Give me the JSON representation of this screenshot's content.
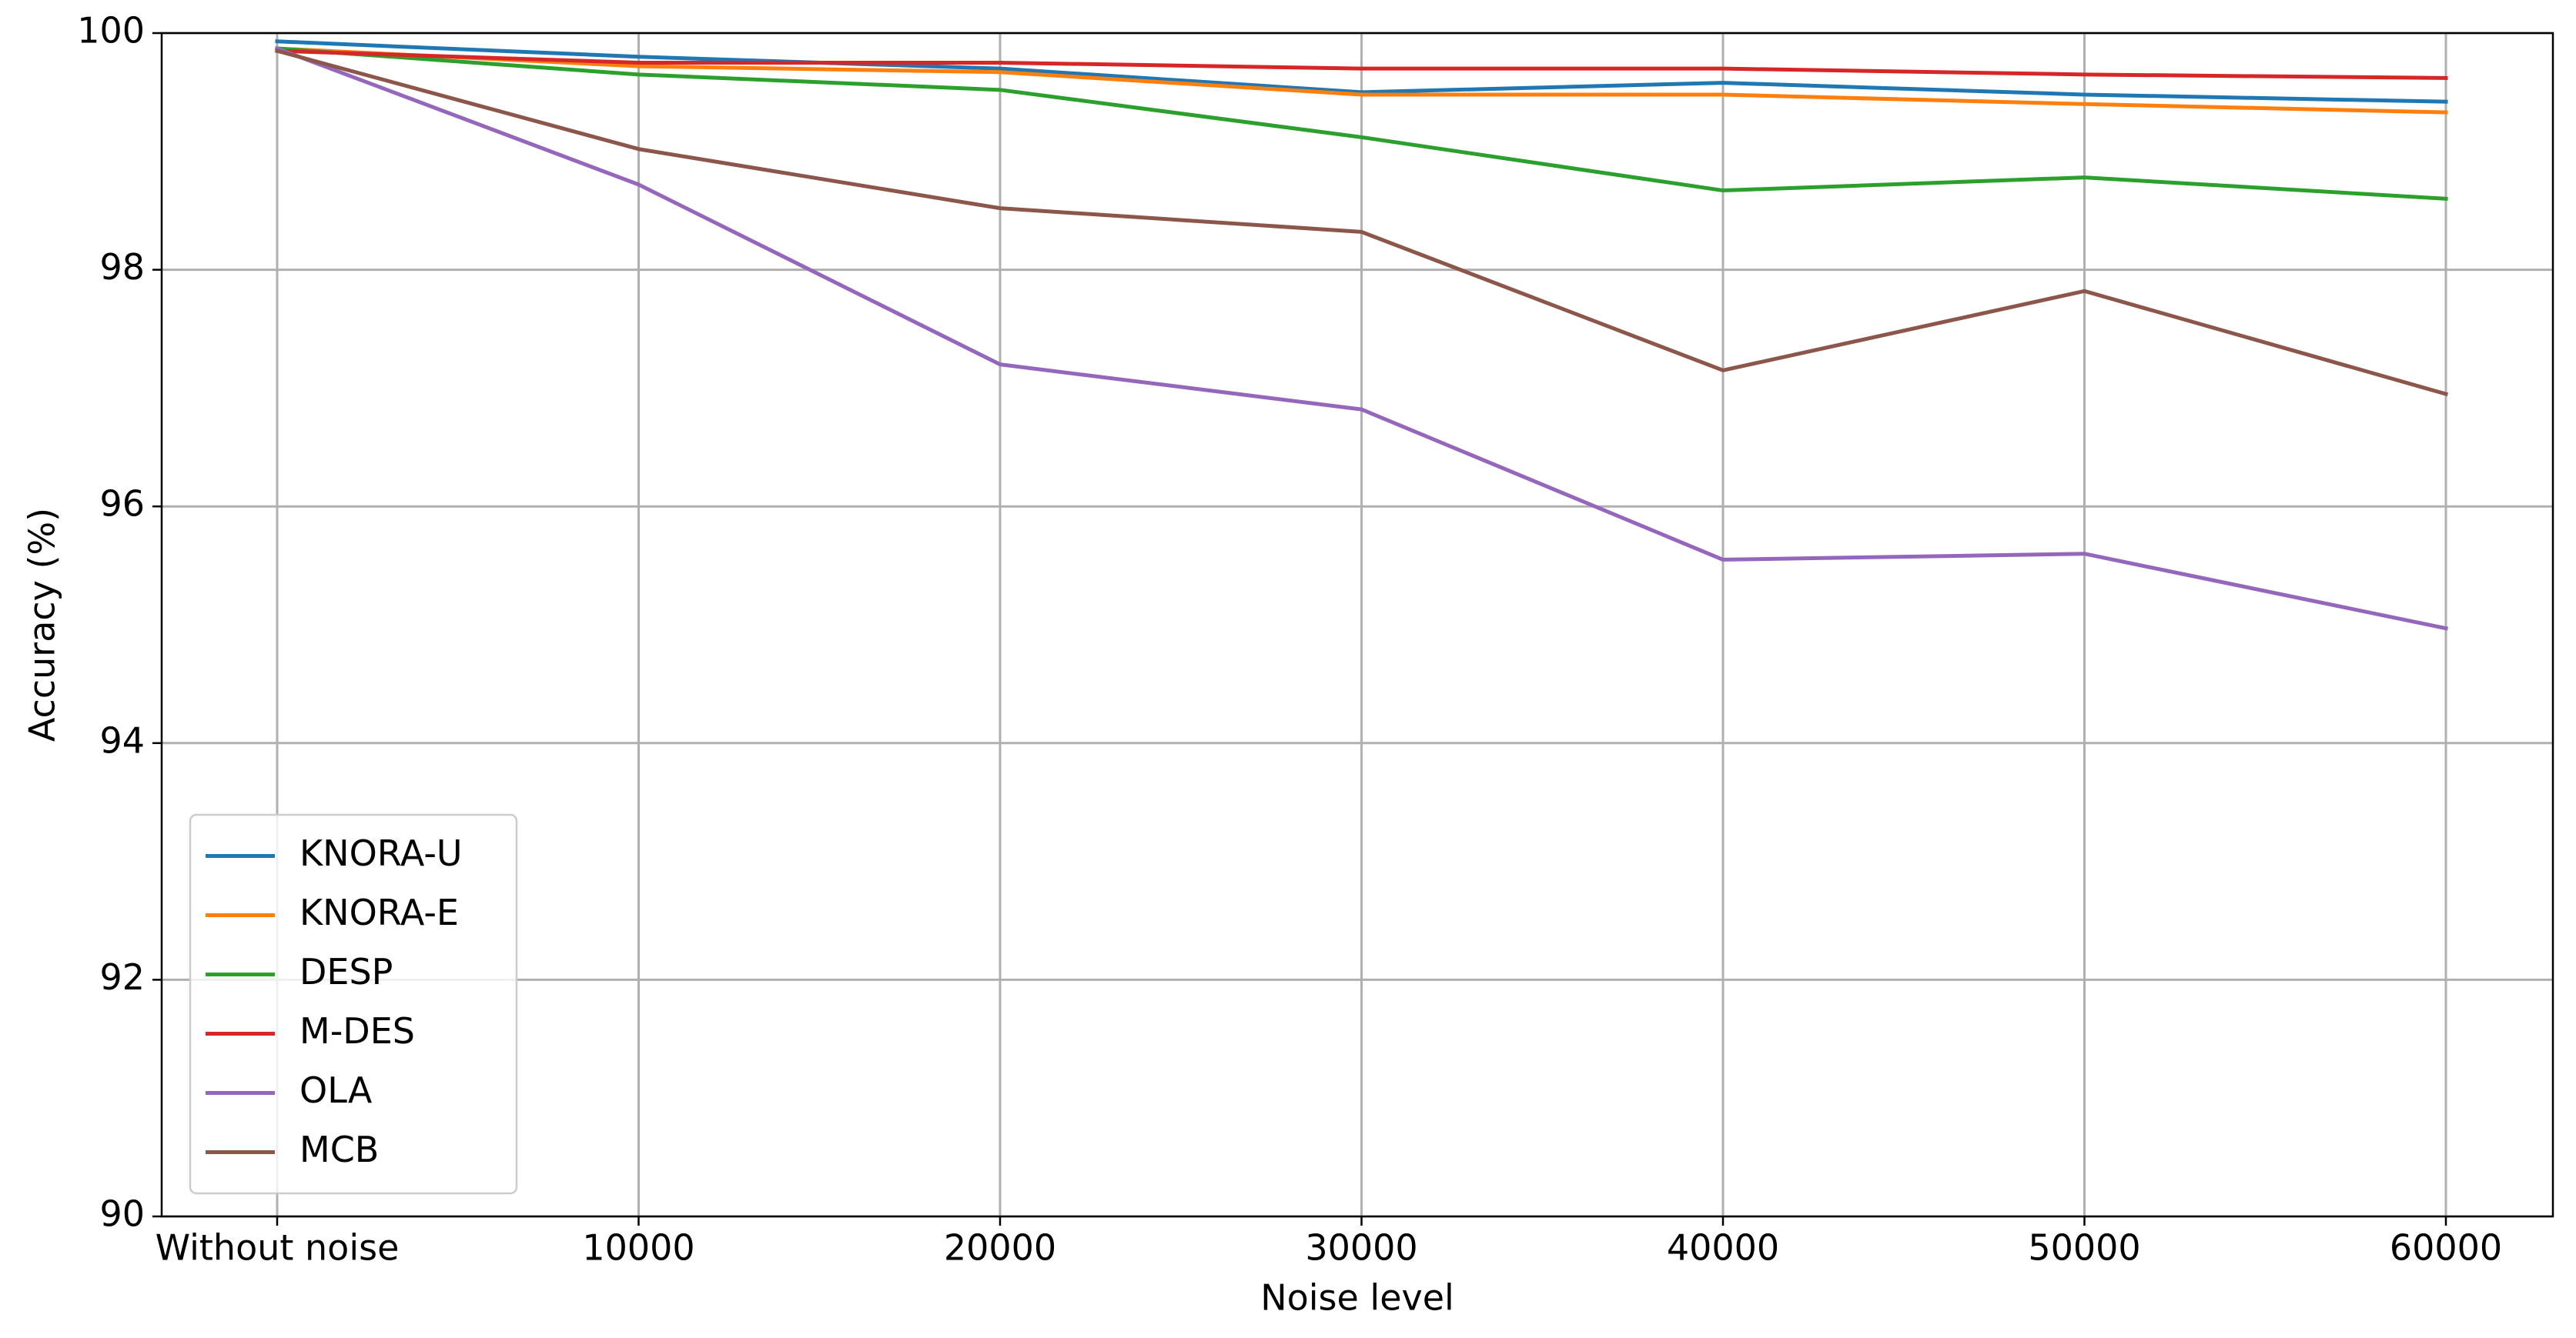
{
  "chart_data": {
    "type": "line",
    "x_label": "Noise level",
    "y_label": "Accuracy (%)",
    "categories": [
      "Without noise",
      "10000",
      "20000",
      "30000",
      "40000",
      "50000",
      "60000"
    ],
    "ylim": [
      90,
      100
    ],
    "yticks": [
      90,
      92,
      94,
      96,
      98,
      100
    ],
    "grid": true,
    "legend_loc": "lower left",
    "series": [
      {
        "name": "KNORA-U",
        "color": "#1f77b4",
        "values": [
          99.93,
          99.8,
          99.7,
          99.5,
          99.58,
          99.48,
          99.42
        ]
      },
      {
        "name": "KNORA-E",
        "color": "#ff7f0e",
        "values": [
          99.87,
          99.72,
          99.67,
          99.48,
          99.48,
          99.4,
          99.33
        ]
      },
      {
        "name": "DESP",
        "color": "#2ca02c",
        "values": [
          99.87,
          99.65,
          99.52,
          99.12,
          98.67,
          98.78,
          98.6
        ]
      },
      {
        "name": "M-DES",
        "color": "#d62728",
        "values": [
          99.85,
          99.75,
          99.75,
          99.7,
          99.7,
          99.65,
          99.62
        ]
      },
      {
        "name": "OLA",
        "color": "#9467bd",
        "values": [
          99.87,
          98.72,
          97.2,
          96.82,
          95.55,
          95.6,
          94.97
        ]
      },
      {
        "name": "MCB",
        "color": "#8c564b",
        "values": [
          99.85,
          99.02,
          98.52,
          98.32,
          97.15,
          97.82,
          96.95
        ]
      }
    ]
  }
}
